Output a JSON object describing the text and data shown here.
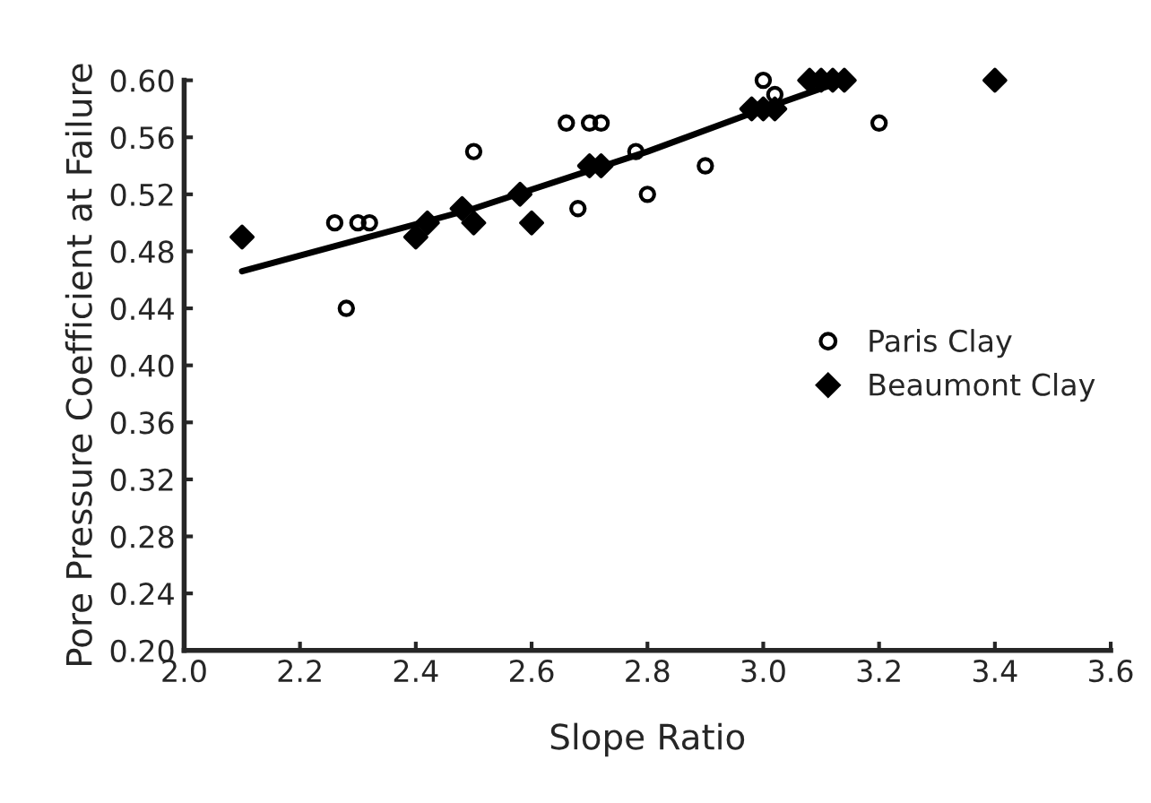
{
  "chart_data": {
    "type": "scatter",
    "xlabel": "Slope Ratio",
    "ylabel": "Pore Pressure Coefficient at Failure",
    "xlim": [
      2.0,
      3.6
    ],
    "xticks": [
      {
        "value": 2.0,
        "label": "2.0"
      },
      2.2,
      2.4,
      2.6,
      2.8,
      {
        "value": 3.0,
        "label": "3.0"
      },
      3.2,
      3.4,
      3.6
    ],
    "ylim": [
      0.2,
      0.6
    ],
    "yticks": [
      {
        "value": 0.2,
        "label": "0.20"
      },
      {
        "value": 0.24,
        "label": "0.24"
      },
      {
        "value": 0.28,
        "label": "0.28"
      },
      {
        "value": 0.32,
        "label": "0.32"
      },
      {
        "value": 0.36,
        "label": "0.36"
      },
      {
        "value": 0.4,
        "label": "0.40"
      },
      {
        "value": 0.44,
        "label": "0.44"
      },
      {
        "value": 0.48,
        "label": "0.48"
      },
      {
        "value": 0.52,
        "label": "0.52"
      },
      {
        "value": 0.56,
        "label": "0.56"
      },
      {
        "value": 0.6,
        "label": "0.60"
      }
    ],
    "grid": false,
    "legend": "right",
    "series": [
      {
        "name": "Paris Clay",
        "color": "#000000",
        "marker": "circle",
        "x": [
          2.26,
          2.28,
          2.3,
          2.32,
          2.5,
          2.66,
          2.68,
          2.7,
          2.72,
          2.78,
          2.8,
          2.9,
          3.0,
          3.02,
          3.2
        ],
        "values": [
          0.5,
          0.44,
          0.5,
          0.5,
          0.55,
          0.57,
          0.51,
          0.57,
          0.57,
          0.55,
          0.52,
          0.54,
          0.6,
          0.59,
          0.57
        ]
      },
      {
        "name": "Beaumont Clay",
        "color": "#000000",
        "marker": "diamond",
        "x": [
          2.1,
          2.4,
          2.42,
          2.48,
          2.5,
          2.58,
          2.6,
          2.7,
          2.72,
          2.98,
          3.0,
          3.02,
          3.08,
          3.1,
          3.12,
          3.14,
          3.4
        ],
        "values": [
          0.49,
          0.49,
          0.5,
          0.51,
          0.5,
          0.52,
          0.5,
          0.54,
          0.54,
          0.58,
          0.58,
          0.58,
          0.6,
          0.6,
          0.6,
          0.6,
          0.6
        ]
      },
      {
        "type": "line",
        "color": "#000000",
        "marker": "none",
        "x": [
          2.1,
          2.5,
          2.8,
          3.0,
          3.14
        ],
        "values": [
          0.466,
          0.51,
          0.55,
          0.58,
          0.6
        ]
      }
    ]
  }
}
